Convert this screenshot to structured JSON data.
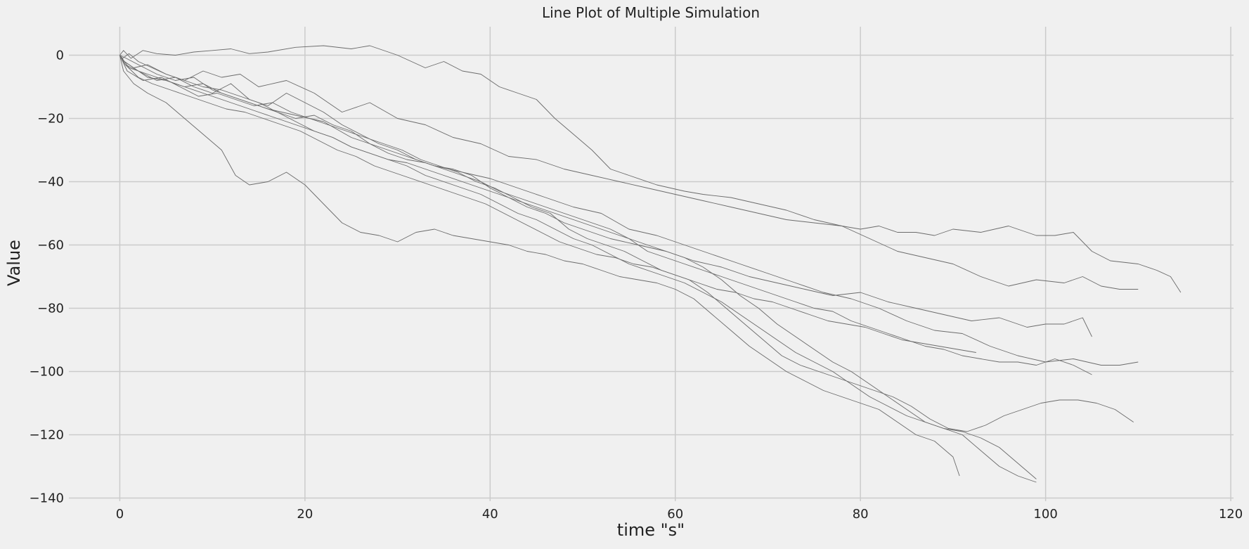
{
  "chart_data": {
    "type": "line",
    "title": "Line Plot of Multiple Simulation",
    "xlabel": "time \"s\"",
    "ylabel": "Value",
    "xlim": [
      -5.5,
      120.3
    ],
    "ylim": [
      -141,
      9
    ],
    "xticks": [
      0,
      20,
      40,
      60,
      80,
      100,
      120
    ],
    "yticks": [
      0,
      -20,
      -40,
      -60,
      -80,
      -100,
      -120,
      -140
    ],
    "grid": true,
    "colors": {
      "background": "#f0f0f0",
      "grid": "#cbcbcb",
      "line": "#6b6b6b",
      "text": "#222222"
    },
    "series": [
      {
        "x": [
          0,
          0.4,
          1.2,
          2.5,
          4.0,
          6.0,
          8.0,
          10.0,
          12.0,
          14.0,
          16.0,
          19.0,
          22.0,
          25.0,
          27.0,
          30.0,
          33.0,
          35.0,
          37.0,
          39.0,
          41.0,
          43.0,
          45.0,
          47.0,
          49.0,
          51.0,
          53.0,
          55.0,
          58.0,
          61.0,
          63.0,
          66.0,
          69.0,
          72.0,
          75.0,
          78.0,
          80.0,
          82.0,
          84.0,
          86.0,
          88.0,
          90.0,
          93.0,
          96.0,
          99.0,
          101.0,
          103.0,
          105.0,
          107.0,
          110.0,
          112.0,
          113.5,
          114.6
        ],
        "y": [
          0,
          1.5,
          -1.0,
          1.5,
          0.5,
          0.0,
          1.0,
          1.5,
          2.0,
          0.5,
          1.0,
          2.5,
          3.0,
          2.0,
          3.0,
          0.0,
          -4.0,
          -2.0,
          -5.0,
          -6.0,
          -10.0,
          -12.0,
          -14.0,
          -20.0,
          -25.0,
          -30.0,
          -36.0,
          -38.0,
          -41.0,
          -43.0,
          -44.0,
          -45.0,
          -47.0,
          -49.0,
          -52.0,
          -54.0,
          -55.0,
          -54.0,
          -56.0,
          -56.0,
          -57.0,
          -55.0,
          -56.0,
          -54.0,
          -57.0,
          -57.0,
          -56.0,
          -62.0,
          -65.0,
          -66.0,
          -68.0,
          -70.0,
          -75.0
        ]
      },
      {
        "x": [
          0,
          0.5,
          1.5,
          3.0,
          5.0,
          7.0,
          9.0,
          11.0,
          13.0,
          15.0,
          18.0,
          21.0,
          24.0,
          27.0,
          30.0,
          33.0,
          36.0,
          39.0,
          42.0,
          45.0,
          48.0,
          51.0,
          54.0,
          57.0,
          60.0,
          63.0,
          66.0,
          69.0,
          72.0,
          75.0,
          78.0,
          81.0,
          84.0,
          87.0,
          90.0,
          93.0,
          96.0,
          99.0,
          102.0,
          104.0,
          106.0,
          108.0,
          110.0
        ],
        "y": [
          0,
          -2.0,
          -4.0,
          -3.0,
          -6.0,
          -8.0,
          -5.0,
          -7.0,
          -6.0,
          -10.0,
          -8.0,
          -12.0,
          -18.0,
          -15.0,
          -20.0,
          -22.0,
          -26.0,
          -28.0,
          -32.0,
          -33.0,
          -36.0,
          -38.0,
          -40.0,
          -42.0,
          -44.0,
          -46.0,
          -48.0,
          -50.0,
          -52.0,
          -53.0,
          -54.0,
          -58.0,
          -62.0,
          -64.0,
          -66.0,
          -70.0,
          -73.0,
          -71.0,
          -72.0,
          -70.0,
          -73.0,
          -74.0,
          -74.0
        ]
      },
      {
        "x": [
          0,
          0.6,
          2.0,
          4.0,
          6.0,
          8.0,
          10.0,
          12.0,
          14.0,
          16.0,
          18.0,
          20.0,
          22.0,
          24.0,
          26.0,
          28.0,
          30.0,
          32.0,
          34.0,
          36.0,
          38.0,
          40.0,
          42.0,
          44.0,
          46.0,
          48.0,
          50.0,
          53.0,
          56.0,
          59.0,
          62.0,
          65.0,
          68.0,
          71.0,
          74.0,
          77.0,
          80.0,
          83.0,
          86.0,
          89.0,
          92.0,
          95.0,
          98.0,
          100.0,
          102.0,
          104.0,
          105.0
        ],
        "y": [
          0,
          -3.0,
          -5.0,
          -8.0,
          -7.0,
          -10.0,
          -12.0,
          -9.0,
          -14.0,
          -16.0,
          -12.0,
          -15.0,
          -18.0,
          -22.0,
          -25.0,
          -28.0,
          -30.0,
          -33.0,
          -35.0,
          -36.0,
          -38.0,
          -42.0,
          -45.0,
          -48.0,
          -50.0,
          -53.0,
          -55.0,
          -58.0,
          -60.0,
          -62.0,
          -65.0,
          -67.0,
          -70.0,
          -72.0,
          -74.0,
          -76.0,
          -75.0,
          -78.0,
          -80.0,
          -82.0,
          -84.0,
          -83.0,
          -86.0,
          -85.0,
          -85.0,
          -83.0,
          -89.0
        ]
      },
      {
        "x": [
          0,
          0.7,
          2.0,
          4.0,
          6.0,
          8.0,
          10.0,
          12.0,
          14.0,
          16.0,
          19.0,
          22.0,
          25.0,
          28.0,
          31.0,
          34.0,
          37.0,
          40.0,
          43.0,
          46.0,
          49.0,
          52.0,
          55.0,
          58.0,
          61.0,
          64.0,
          67.0,
          70.0,
          73.0,
          76.0,
          79.0,
          82.0,
          85.0,
          88.0,
          91.0,
          94.0,
          97.0,
          100.0,
          103.0,
          106.0,
          108.0,
          110.0
        ],
        "y": [
          0,
          -1.0,
          -3.0,
          -6.0,
          -8.0,
          -7.0,
          -11.0,
          -13.0,
          -15.0,
          -17.0,
          -19.0,
          -21.0,
          -26.0,
          -29.0,
          -32.0,
          -35.0,
          -37.0,
          -39.0,
          -42.0,
          -45.0,
          -48.0,
          -50.0,
          -55.0,
          -57.0,
          -60.0,
          -63.0,
          -66.0,
          -69.0,
          -72.0,
          -75.0,
          -77.0,
          -80.0,
          -84.0,
          -87.0,
          -88.0,
          -92.0,
          -95.0,
          -97.0,
          -96.0,
          -98.0,
          -98.0,
          -97.0
        ]
      },
      {
        "x": [
          0,
          0.5,
          1.5,
          3.0,
          5.0,
          7.0,
          9.0,
          11.0,
          13.0,
          15.0,
          17.0,
          19.0,
          21.0,
          23.0,
          25.0,
          27.0,
          29.0,
          31.0,
          33.0,
          35.0,
          37.0,
          39.0,
          41.0,
          43.0,
          45.0,
          47.0,
          49.0,
          51.0,
          53.0,
          55.0,
          57.0,
          59.0,
          61.0,
          63.0,
          65.0,
          67.0,
          69.0,
          71.0,
          73.0,
          75.0,
          77.0,
          79.0,
          81.0,
          83.0,
          85.0,
          87.0,
          89.0,
          91.0,
          93.0,
          95.0,
          97.0,
          99.0,
          101.0,
          103.0,
          105.0
        ],
        "y": [
          0,
          -2.0,
          -4.0,
          -7.0,
          -8.0,
          -10.0,
          -9.0,
          -12.0,
          -14.0,
          -16.0,
          -18.0,
          -20.0,
          -19.0,
          -22.0,
          -24.0,
          -28.0,
          -31.0,
          -33.0,
          -34.0,
          -36.0,
          -38.0,
          -40.0,
          -43.0,
          -45.0,
          -47.0,
          -49.0,
          -51.0,
          -53.0,
          -55.0,
          -58.0,
          -62.0,
          -64.0,
          -66.0,
          -68.0,
          -70.0,
          -72.0,
          -74.0,
          -76.0,
          -78.0,
          -80.0,
          -81.0,
          -84.0,
          -86.0,
          -88.0,
          -90.0,
          -92.0,
          -93.0,
          -95.0,
          -96.0,
          -97.0,
          -97.0,
          -98.0,
          -96.0,
          -98.0,
          -101.0
        ]
      },
      {
        "x": [
          0,
          0.8,
          2.5,
          4.5,
          6.5,
          8.5,
          10.5,
          12.5,
          14.5,
          16.5,
          18.5,
          20.5,
          22.5,
          24.5,
          26.5,
          28.5,
          30.5,
          32.5,
          34.5,
          36.5,
          38.5,
          40.5,
          42.5,
          44.5,
          46.5,
          48.5,
          50.5,
          52.5,
          54.5,
          56.5,
          58.5,
          60.5,
          62.5,
          64.5,
          66.5,
          68.5,
          70.5,
          72.5,
          74.5,
          76.5,
          78.5,
          80.5,
          82.5,
          84.5,
          86.5,
          88.5,
          90.5,
          92.5
        ],
        "y": [
          0,
          -5.0,
          -8.0,
          -7.0,
          -10.0,
          -13.0,
          -12.0,
          -14.0,
          -16.0,
          -15.0,
          -18.0,
          -20.0,
          -22.0,
          -24.0,
          -26.0,
          -28.0,
          -30.0,
          -33.0,
          -35.0,
          -37.0,
          -40.0,
          -42.0,
          -45.0,
          -48.0,
          -50.0,
          -55.0,
          -58.0,
          -60.0,
          -62.0,
          -65.0,
          -68.0,
          -70.0,
          -72.0,
          -74.0,
          -75.0,
          -77.0,
          -78.0,
          -80.0,
          -82.0,
          -84.0,
          -85.0,
          -86.0,
          -88.0,
          -90.0,
          -91.0,
          -92.0,
          -93.0,
          -94.0
        ]
      },
      {
        "x": [
          0,
          1.0,
          3.0,
          5.0,
          7.0,
          9.0,
          11.0,
          13.0,
          15.0,
          17.0,
          19.0,
          21.0,
          23.0,
          25.0,
          27.0,
          29.0,
          31.0,
          33.0,
          35.0,
          37.0,
          39.0,
          41.0,
          43.0,
          45.0,
          47.0,
          49.0,
          51.0,
          53.0,
          55.0,
          57.0,
          59.0,
          61.0,
          63.0,
          65.0,
          67.0,
          69.0,
          71.0,
          73.0,
          75.0,
          77.0,
          79.0,
          81.0,
          83.0,
          85.0,
          87.0,
          89.0,
          91.0,
          93.0,
          95.0,
          97.0,
          99.0
        ],
        "y": [
          0,
          -4.0,
          -6.0,
          -8.0,
          -10.0,
          -12.0,
          -14.0,
          -16.0,
          -18.0,
          -20.0,
          -22.0,
          -24.0,
          -26.0,
          -29.0,
          -31.0,
          -33.0,
          -35.0,
          -38.0,
          -40.0,
          -42.0,
          -44.0,
          -47.0,
          -50.0,
          -52.0,
          -55.0,
          -58.0,
          -60.0,
          -63.0,
          -66.0,
          -68.0,
          -70.0,
          -72.0,
          -75.0,
          -78.0,
          -82.0,
          -86.0,
          -90.0,
          -94.0,
          -97.0,
          -100.0,
          -104.0,
          -108.0,
          -111.0,
          -114.0,
          -116.0,
          -118.0,
          -120.0,
          -125.0,
          -130.0,
          -133.0,
          -135.0
        ]
      },
      {
        "x": [
          0,
          0.4,
          1.5,
          3.0,
          5.0,
          7.0,
          9.0,
          11.0,
          12.5,
          14.0,
          16.0,
          18.0,
          20.0,
          22.0,
          24.0,
          26.0,
          28.0,
          30.0,
          32.0,
          34.0,
          36.0,
          38.0,
          40.0,
          42.0,
          44.0,
          46.0,
          48.0,
          50.0,
          52.0,
          54.0,
          56.0,
          58.0,
          60.0,
          62.0,
          64.0,
          66.0,
          68.0,
          70.0,
          72.0,
          74.0,
          76.0,
          78.0,
          80.0,
          82.0,
          84.0,
          86.0,
          88.0,
          90.0,
          90.7
        ],
        "y": [
          0,
          -5.0,
          -9.0,
          -12.0,
          -15.0,
          -20.0,
          -25.0,
          -30.0,
          -38.0,
          -41.0,
          -40.0,
          -37.0,
          -41.0,
          -47.0,
          -53.0,
          -56.0,
          -57.0,
          -59.0,
          -56.0,
          -55.0,
          -57.0,
          -58.0,
          -59.0,
          -60.0,
          -62.0,
          -63.0,
          -65.0,
          -66.0,
          -68.0,
          -70.0,
          -71.0,
          -72.0,
          -74.0,
          -77.0,
          -82.0,
          -87.0,
          -92.0,
          -96.0,
          -100.0,
          -103.0,
          -106.0,
          -108.0,
          -110.0,
          -112.0,
          -116.0,
          -120.0,
          -122.0,
          -127.0,
          -133.0
        ]
      },
      {
        "x": [
          0,
          0.6,
          2.0,
          3.5,
          5.5,
          7.5,
          9.5,
          11.5,
          13.5,
          15.5,
          17.5,
          19.5,
          21.5,
          23.5,
          25.5,
          27.5,
          29.5,
          31.5,
          33.5,
          35.5,
          37.5,
          39.5,
          41.5,
          43.5,
          45.5,
          47.5,
          49.5,
          51.5,
          53.5,
          55.5,
          57.5,
          59.5,
          61.5,
          63.5,
          65.5,
          67.5,
          69.5,
          71.5,
          73.5,
          75.5,
          77.5,
          79.5,
          81.5,
          83.5,
          85.5,
          87.5,
          89.5,
          91.5,
          93.5,
          95.5,
          97.5,
          99.5,
          101.5,
          103.5,
          105.5,
          107.5,
          109.5
        ],
        "y": [
          0,
          -3.0,
          -7.0,
          -9.0,
          -11.0,
          -13.0,
          -15.0,
          -17.0,
          -18.0,
          -20.0,
          -22.0,
          -24.0,
          -27.0,
          -30.0,
          -32.0,
          -35.0,
          -37.0,
          -39.0,
          -41.0,
          -43.0,
          -45.0,
          -47.0,
          -50.0,
          -53.0,
          -56.0,
          -59.0,
          -61.0,
          -63.0,
          -64.0,
          -66.0,
          -67.0,
          -69.0,
          -71.0,
          -75.0,
          -80.0,
          -85.0,
          -90.0,
          -95.0,
          -98.0,
          -100.0,
          -102.0,
          -104.0,
          -106.0,
          -108.0,
          -111.0,
          -115.0,
          -118.0,
          -119.0,
          -117.0,
          -114.0,
          -112.0,
          -110.0,
          -109.0,
          -109.0,
          -110.0,
          -112.0,
          -116.0
        ]
      },
      {
        "x": [
          0,
          0.3,
          1.0,
          2.0,
          3.5,
          5.0,
          7.0,
          9.0,
          11.0,
          13.0,
          15.0,
          17.0,
          19.0,
          21.0,
          23.0,
          25.0,
          27.0,
          29.0,
          31.0,
          33.0,
          35.0,
          37.0,
          39.0,
          41.0,
          43.0,
          45.0,
          47.0,
          49.0,
          51.0,
          53.0,
          55.0,
          57.0,
          59.0,
          61.0,
          63.0,
          65.0,
          67.0,
          69.0,
          71.0,
          73.0,
          75.0,
          77.0,
          79.0,
          81.0,
          83.0,
          85.0,
          87.0,
          89.0,
          91.0,
          93.0,
          95.0,
          97.0,
          99.0
        ],
        "y": [
          0,
          -1.0,
          0.5,
          -2.0,
          -4.0,
          -6.0,
          -8.0,
          -10.0,
          -11.0,
          -13.0,
          -15.0,
          -18.0,
          -21.0,
          -24.0,
          -26.0,
          -29.0,
          -31.0,
          -33.0,
          -34.0,
          -36.0,
          -38.0,
          -40.0,
          -42.0,
          -44.0,
          -46.0,
          -48.0,
          -50.0,
          -52.0,
          -54.0,
          -56.0,
          -58.0,
          -60.0,
          -62.0,
          -64.0,
          -67.0,
          -71.0,
          -76.0,
          -80.0,
          -85.0,
          -89.0,
          -93.0,
          -97.0,
          -100.0,
          -104.0,
          -108.0,
          -112.0,
          -116.0,
          -118.0,
          -119.0,
          -121.0,
          -124.0,
          -129.0,
          -134.0
        ]
      }
    ]
  }
}
